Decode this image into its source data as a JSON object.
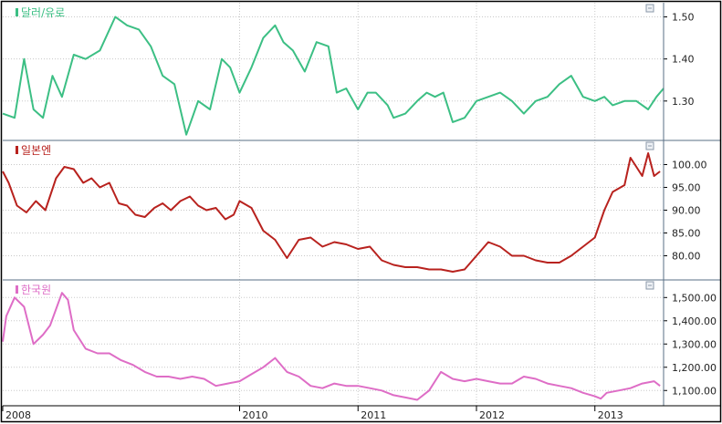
{
  "colors": {
    "background": "#ffffff",
    "frame": "#000000",
    "divider": "#5a6f86",
    "grid": "#c8c8c8",
    "text": "#222222",
    "min_button": "#8a97a8"
  },
  "x_axis": {
    "labels": [
      "2008",
      "2010",
      "2011",
      "2012",
      "2013"
    ],
    "positions": [
      2008.0,
      2010.0,
      2011.0,
      2012.0,
      2013.0
    ],
    "range": [
      2008.0,
      2013.58
    ]
  },
  "chart_data": [
    {
      "type": "line",
      "title": "달러/유로",
      "color": "#3cbf84",
      "ylim": [
        1.215,
        1.525
      ],
      "yticks": [
        1.3,
        1.4,
        1.5
      ],
      "ytick_labels": [
        "1.30",
        "1.40",
        "1.50"
      ],
      "x": [
        2008.0,
        2008.1,
        2008.18,
        2008.26,
        2008.34,
        2008.42,
        2008.5,
        2008.6,
        2008.7,
        2008.82,
        2008.95,
        2009.05,
        2009.15,
        2009.25,
        2009.35,
        2009.45,
        2009.55,
        2009.65,
        2009.75,
        2009.85,
        2009.92,
        2010.0,
        2010.1,
        2010.2,
        2010.3,
        2010.37,
        2010.45,
        2010.55,
        2010.65,
        2010.75,
        2010.82,
        2010.9,
        2011.0,
        2011.08,
        2011.15,
        2011.25,
        2011.3,
        2011.4,
        2011.5,
        2011.58,
        2011.65,
        2011.72,
        2011.8,
        2011.9,
        2012.0,
        2012.1,
        2012.2,
        2012.3,
        2012.4,
        2012.5,
        2012.6,
        2012.7,
        2012.8,
        2012.9,
        2013.0,
        2013.08,
        2013.15,
        2013.25,
        2013.35,
        2013.45,
        2013.52,
        2013.58
      ],
      "values": [
        1.27,
        1.26,
        1.4,
        1.28,
        1.26,
        1.36,
        1.31,
        1.41,
        1.4,
        1.42,
        1.5,
        1.48,
        1.47,
        1.43,
        1.36,
        1.34,
        1.22,
        1.3,
        1.28,
        1.4,
        1.38,
        1.32,
        1.38,
        1.45,
        1.48,
        1.44,
        1.42,
        1.37,
        1.44,
        1.43,
        1.32,
        1.33,
        1.28,
        1.32,
        1.32,
        1.29,
        1.26,
        1.27,
        1.3,
        1.32,
        1.31,
        1.32,
        1.25,
        1.26,
        1.3,
        1.31,
        1.32,
        1.3,
        1.27,
        1.3,
        1.31,
        1.34,
        1.36,
        1.31,
        1.3,
        1.31,
        1.29,
        1.3,
        1.3,
        1.28,
        1.31,
        1.33
      ]
    },
    {
      "type": "line",
      "title": "일본엔",
      "color": "#b8221e",
      "ylim": [
        75.5,
        104.5
      ],
      "yticks": [
        80,
        85,
        90,
        95,
        100
      ],
      "ytick_labels": [
        "80.00",
        "85.00",
        "90.00",
        "95.00",
        "100.00"
      ],
      "x": [
        2008.0,
        2008.05,
        2008.12,
        2008.2,
        2008.28,
        2008.36,
        2008.45,
        2008.52,
        2008.6,
        2008.68,
        2008.75,
        2008.82,
        2008.9,
        2008.98,
        2009.05,
        2009.12,
        2009.2,
        2009.28,
        2009.35,
        2009.42,
        2009.5,
        2009.58,
        2009.65,
        2009.72,
        2009.8,
        2009.88,
        2009.95,
        2010.0,
        2010.1,
        2010.2,
        2010.3,
        2010.4,
        2010.5,
        2010.6,
        2010.7,
        2010.8,
        2010.9,
        2011.0,
        2011.1,
        2011.2,
        2011.3,
        2011.4,
        2011.5,
        2011.6,
        2011.7,
        2011.8,
        2011.9,
        2012.0,
        2012.1,
        2012.2,
        2012.3,
        2012.4,
        2012.5,
        2012.6,
        2012.7,
        2012.8,
        2012.9,
        2013.0,
        2013.08,
        2013.15,
        2013.25,
        2013.3,
        2013.35,
        2013.4,
        2013.45,
        2013.5,
        2013.55
      ],
      "values": [
        98.5,
        96.0,
        91.0,
        89.5,
        92.0,
        90.0,
        97.0,
        99.5,
        99.0,
        96.0,
        97.0,
        95.0,
        96.0,
        91.5,
        91.0,
        89.0,
        88.5,
        90.5,
        91.5,
        90.0,
        92.0,
        93.0,
        91.0,
        90.0,
        90.5,
        88.0,
        89.0,
        92.0,
        90.5,
        85.5,
        83.5,
        79.5,
        83.5,
        84.0,
        82.0,
        83.0,
        82.5,
        81.5,
        82.0,
        79.0,
        78.0,
        77.5,
        77.5,
        77.0,
        77.0,
        76.5,
        77.0,
        80.0,
        83.0,
        82.0,
        80.0,
        80.0,
        79.0,
        78.5,
        78.5,
        80.0,
        82.0,
        84.0,
        90.0,
        94.0,
        95.5,
        101.5,
        99.5,
        97.5,
        102.5,
        97.5,
        98.5
      ]
    },
    {
      "type": "line",
      "title": "한국원",
      "color": "#de6dc6",
      "ylim": [
        1050,
        1560
      ],
      "yticks": [
        1100,
        1200,
        1300,
        1400,
        1500
      ],
      "ytick_labels": [
        "1,100.00",
        "1,200.00",
        "1,300.00",
        "1,400.00",
        "1,500.00"
      ],
      "x": [
        2008.0,
        2008.03,
        2008.1,
        2008.18,
        2008.26,
        2008.34,
        2008.4,
        2008.5,
        2008.55,
        2008.6,
        2008.7,
        2008.8,
        2008.9,
        2009.0,
        2009.1,
        2009.2,
        2009.3,
        2009.4,
        2009.5,
        2009.6,
        2009.7,
        2009.8,
        2009.9,
        2010.0,
        2010.1,
        2010.2,
        2010.3,
        2010.4,
        2010.5,
        2010.6,
        2010.7,
        2010.8,
        2010.9,
        2011.0,
        2011.1,
        2011.2,
        2011.3,
        2011.4,
        2011.5,
        2011.6,
        2011.7,
        2011.8,
        2011.9,
        2012.0,
        2012.1,
        2012.2,
        2012.3,
        2012.4,
        2012.5,
        2012.6,
        2012.7,
        2012.8,
        2012.9,
        2013.0,
        2013.05,
        2013.1,
        2013.2,
        2013.3,
        2013.4,
        2013.5,
        2013.55
      ],
      "values": [
        1310.0,
        1420.0,
        1500.0,
        1460.0,
        1300.0,
        1340.0,
        1380.0,
        1520.0,
        1490.0,
        1360.0,
        1280.0,
        1260.0,
        1260.0,
        1230.0,
        1210.0,
        1180.0,
        1160.0,
        1160.0,
        1150.0,
        1160.0,
        1150.0,
        1120.0,
        1130.0,
        1140.0,
        1170.0,
        1200.0,
        1240.0,
        1180.0,
        1160.0,
        1120.0,
        1110.0,
        1130.0,
        1120.0,
        1120.0,
        1110.0,
        1100.0,
        1080.0,
        1070.0,
        1060.0,
        1100.0,
        1180.0,
        1150.0,
        1140.0,
        1150.0,
        1140.0,
        1130.0,
        1130.0,
        1160.0,
        1150.0,
        1130.0,
        1120.0,
        1110.0,
        1090.0,
        1075.0,
        1065.0,
        1090.0,
        1100.0,
        1110.0,
        1130.0,
        1140.0,
        1120.0
      ]
    }
  ]
}
